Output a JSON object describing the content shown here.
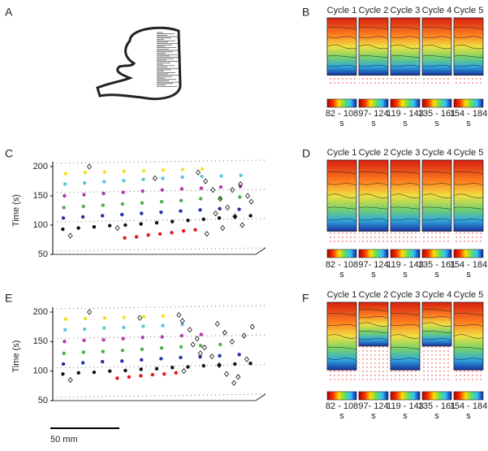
{
  "panel_a": {
    "label": "A",
    "scale_bar": "50 mm"
  },
  "maps": [
    {
      "label": "B",
      "cycles": [
        "Cycle 1",
        "Cycle 2",
        "Cycle 3",
        "Cycle 4",
        "Cycle 5"
      ],
      "colorbars": [
        {
          "range": "82 - 108",
          "unit": "s"
        },
        {
          "range": "97- 124",
          "unit": "s"
        },
        {
          "range": "119 - 143",
          "unit": "s"
        },
        {
          "range": "135 - 161",
          "unit": "s"
        },
        {
          "range": "154 - 184",
          "unit": "s"
        }
      ]
    },
    {
      "label": "D",
      "cycles": [
        "Cycle 1",
        "Cycle 2",
        "Cycle 3",
        "Cycle 4",
        "Cycle 5"
      ],
      "colorbars": [
        {
          "range": "82 - 108",
          "unit": "s"
        },
        {
          "range": "97- 124",
          "unit": "s"
        },
        {
          "range": "119 - 143",
          "unit": "s"
        },
        {
          "range": "135 - 161",
          "unit": "s"
        },
        {
          "range": "154 - 184",
          "unit": "s"
        }
      ]
    },
    {
      "label": "F",
      "cycles": [
        "Cycle 1",
        "Cycle 2",
        "Cycle 3",
        "Cycle 4",
        "Cycle 5"
      ],
      "colorbars": [
        {
          "range": "82 - 108",
          "unit": "s"
        },
        {
          "range": "97- 124",
          "unit": "s"
        },
        {
          "range": "119 - 143",
          "unit": "s"
        },
        {
          "range": "135 - 161",
          "unit": "s"
        },
        {
          "range": "154 - 184",
          "unit": "s"
        }
      ]
    }
  ],
  "chart_data": [
    {
      "type": "scatter",
      "panel": "C",
      "y_label": "Time (s)",
      "xlim": [
        0,
        100
      ],
      "ylim": [
        50,
        200
      ],
      "yticks": [
        50,
        100,
        150,
        200
      ],
      "grid": true,
      "series": [
        {
          "color": "#111111",
          "marker": "circle",
          "x": [
            2,
            10,
            18,
            26,
            34,
            42,
            50,
            58,
            66,
            74,
            82,
            90,
            98
          ],
          "values": [
            93,
            95,
            97,
            99,
            100,
            102,
            104,
            106,
            108,
            110,
            112,
            114,
            116
          ]
        },
        {
          "color": "#e41a1c",
          "marker": "circle",
          "x": [
            34,
            40,
            46,
            52,
            58,
            64,
            70
          ],
          "values": [
            78,
            80,
            83,
            85,
            87,
            90,
            92
          ]
        },
        {
          "color": "#2233aa",
          "marker": "circle",
          "x": [
            2,
            12,
            22,
            32,
            42,
            52,
            62,
            72,
            82,
            92
          ],
          "values": [
            112,
            114,
            116,
            118,
            120,
            122,
            124,
            126,
            128,
            127
          ]
        },
        {
          "color": "#4daf4a",
          "marker": "circle",
          "x": [
            2,
            12,
            22,
            32,
            42,
            52,
            62,
            72,
            82,
            92
          ],
          "values": [
            130,
            132,
            134,
            136,
            138,
            140,
            142,
            145,
            146,
            148
          ]
        },
        {
          "color": "#b23ab2",
          "marker": "circle",
          "x": [
            2,
            12,
            22,
            32,
            42,
            52,
            62,
            72,
            82,
            92
          ],
          "values": [
            150,
            152,
            154,
            156,
            158,
            160,
            162,
            163,
            165,
            166
          ]
        },
        {
          "color": "#5bc8d8",
          "marker": "circle",
          "x": [
            2,
            12,
            22,
            32,
            42,
            52,
            62,
            72,
            82,
            92
          ],
          "values": [
            170,
            172,
            174,
            176,
            178,
            180,
            182,
            183,
            184,
            185
          ]
        },
        {
          "color": "#f5e21b",
          "marker": "circle",
          "x": [
            2,
            12,
            22,
            32,
            42,
            52,
            62,
            72
          ],
          "values": [
            188,
            190,
            191,
            192,
            193,
            194,
            195,
            196
          ]
        },
        {
          "color": "#111111",
          "marker": "diamond",
          "x": [
            6,
            14,
            30,
            48,
            70,
            74,
            78,
            82,
            86,
            90,
            94,
            98,
            76,
            84,
            92,
            96,
            80,
            88
          ],
          "values": [
            82,
            200,
            95,
            180,
            190,
            175,
            160,
            145,
            130,
            115,
            100,
            140,
            85,
            95,
            170,
            150,
            120,
            160
          ]
        }
      ]
    },
    {
      "type": "scatter",
      "panel": "E",
      "y_label": "Time (s)",
      "xlim": [
        0,
        100
      ],
      "ylim": [
        50,
        200
      ],
      "yticks": [
        50,
        100,
        150,
        200
      ],
      "grid": true,
      "series": [
        {
          "color": "#111111",
          "marker": "circle",
          "x": [
            2,
            10,
            18,
            26,
            34,
            42,
            50,
            58,
            66,
            74,
            82,
            90,
            98
          ],
          "values": [
            95,
            97,
            98,
            100,
            101,
            103,
            104,
            106,
            107,
            109,
            110,
            112,
            113
          ]
        },
        {
          "color": "#e41a1c",
          "marker": "circle",
          "x": [
            30,
            36,
            42,
            48,
            54,
            60
          ],
          "values": [
            88,
            90,
            92,
            94,
            95,
            97
          ]
        },
        {
          "color": "#2233aa",
          "marker": "circle",
          "x": [
            2,
            12,
            22,
            32,
            42,
            52,
            62,
            72,
            82,
            92
          ],
          "values": [
            112,
            114,
            116,
            117,
            119,
            121,
            123,
            124,
            126,
            128
          ]
        },
        {
          "color": "#4daf4a",
          "marker": "circle",
          "x": [
            2,
            12,
            22,
            32,
            42,
            52,
            62,
            72,
            82
          ],
          "values": [
            130,
            132,
            133,
            135,
            137,
            139,
            141,
            143,
            145
          ]
        },
        {
          "color": "#b23ab2",
          "marker": "circle",
          "x": [
            2,
            12,
            22,
            32,
            42,
            52,
            62,
            72
          ],
          "values": [
            150,
            152,
            153,
            155,
            157,
            158,
            160,
            162
          ]
        },
        {
          "color": "#5bc8d8",
          "marker": "circle",
          "x": [
            2,
            12,
            22,
            32,
            42,
            52,
            62
          ],
          "values": [
            170,
            171,
            173,
            174,
            176,
            177,
            179
          ]
        },
        {
          "color": "#f5e21b",
          "marker": "circle",
          "x": [
            2,
            12,
            22,
            32,
            42,
            52
          ],
          "values": [
            188,
            189,
            190,
            191,
            192,
            193
          ]
        },
        {
          "color": "#111111",
          "marker": "diamond",
          "x": [
            6,
            14,
            40,
            60,
            62,
            66,
            70,
            74,
            78,
            82,
            86,
            90,
            94,
            98,
            64,
            72,
            80,
            88,
            96,
            68,
            84,
            92
          ],
          "values": [
            85,
            200,
            190,
            195,
            185,
            170,
            155,
            140,
            125,
            110,
            95,
            80,
            160,
            175,
            100,
            130,
            180,
            150,
            120,
            145,
            165,
            90
          ]
        }
      ]
    }
  ]
}
